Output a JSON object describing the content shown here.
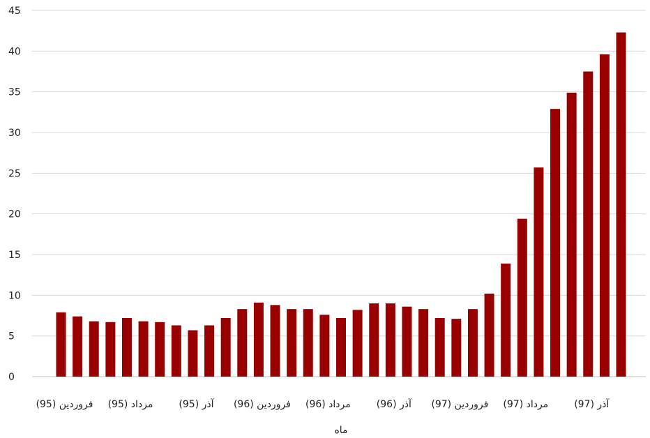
{
  "chart_data": {
    "type": "bar",
    "title": "",
    "xlabel": "ماه",
    "ylabel": "",
    "ylim": [
      0,
      45
    ],
    "yticks": [
      0,
      5,
      10,
      15,
      20,
      25,
      30,
      35,
      40,
      45
    ],
    "grid": true,
    "legend": "none",
    "bar_color": "#990000",
    "x_tick_labels": [
      {
        "index": 0,
        "label": "فروردین (95)"
      },
      {
        "index": 4,
        "label": "مرداد (95)"
      },
      {
        "index": 8,
        "label": "آذر (95)"
      },
      {
        "index": 12,
        "label": "فروردین (96)"
      },
      {
        "index": 16,
        "label": "مرداد (96)"
      },
      {
        "index": 20,
        "label": "آذر (96)"
      },
      {
        "index": 24,
        "label": "فروردین (97)"
      },
      {
        "index": 28,
        "label": "مرداد (97)"
      },
      {
        "index": 32,
        "label": "آذر (97)"
      }
    ],
    "values": [
      7.9,
      7.4,
      6.8,
      6.7,
      7.2,
      6.8,
      6.7,
      6.3,
      5.7,
      6.3,
      7.2,
      8.3,
      9.1,
      8.8,
      8.3,
      8.3,
      7.6,
      7.2,
      8.2,
      9.0,
      9.0,
      8.6,
      8.3,
      7.2,
      7.1,
      8.3,
      10.2,
      13.9,
      19.4,
      25.7,
      32.9,
      34.9,
      37.5,
      39.6,
      42.3
    ]
  }
}
